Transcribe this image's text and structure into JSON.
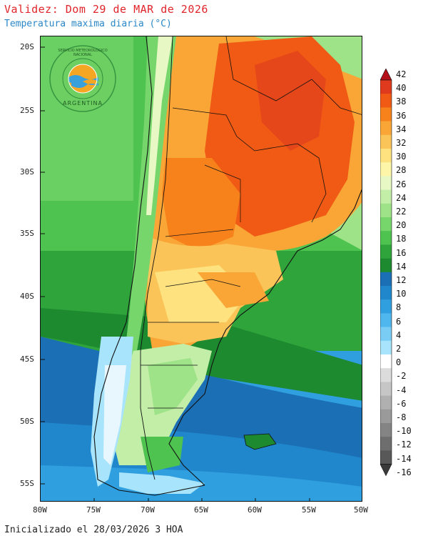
{
  "header": {
    "title": "Validez: Dom 29 de MAR de 2026",
    "subtitle": "Temperatura maxima diaria (°C)"
  },
  "footer": {
    "init_text": "Inicializado el 28/03/2026 3 HOA"
  },
  "logo": {
    "top_text": "SERVICIO METEOROLÓGICO NACIONAL",
    "bottom_text": "ARGENTINA",
    "icon": "smn-logo"
  },
  "axes": {
    "lat_labels": [
      "20S",
      "25S",
      "30S",
      "35S",
      "40S",
      "45S",
      "50S",
      "55S"
    ],
    "lon_labels": [
      "80W",
      "75W",
      "70W",
      "65W",
      "60W",
      "55W",
      "50W"
    ]
  },
  "colorbar": {
    "labels": [
      "42",
      "40",
      "38",
      "36",
      "34",
      "32",
      "30",
      "28",
      "26",
      "24",
      "22",
      "20",
      "18",
      "16",
      "14",
      "12",
      "10",
      "8",
      "6",
      "4",
      "2",
      "0",
      "-2",
      "-4",
      "-6",
      "-8",
      "-10",
      "-12",
      "-14",
      "-16"
    ],
    "colors": [
      "#c0181c",
      "#e03a1e",
      "#f05a14",
      "#f7821c",
      "#f9a637",
      "#fbc459",
      "#fde27f",
      "#fdf6a8",
      "#e7f8c4",
      "#c3eea8",
      "#9ee388",
      "#76d66c",
      "#4ec34f",
      "#2ea43b",
      "#1e8a30",
      "#1b6fb5",
      "#2187cc",
      "#2f9fe0",
      "#4fb6ee",
      "#79cdf5",
      "#a8e4fb",
      "#ffffff",
      "#dcdcdc",
      "#c6c6c6",
      "#b0b0b0",
      "#9a9a9a",
      "#848484",
      "#6e6e6e",
      "#585858",
      "#444444"
    ],
    "top_arrow_color": "#b3101a",
    "bottom_arrow_color": "#3a3a3a"
  },
  "map": {
    "ocean_colors": {
      "deep_south": "#2f9fe0",
      "mid_south": "#2187cc",
      "north_pacific": "#4ec34f",
      "north_atlantic": "#76d66c"
    }
  }
}
